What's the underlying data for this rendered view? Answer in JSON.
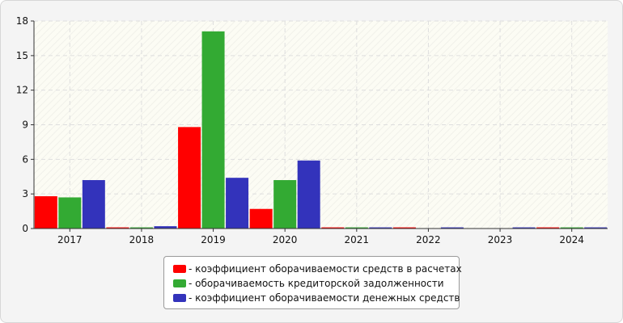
{
  "chart_data": {
    "type": "bar",
    "categories": [
      "2017",
      "2018",
      "2019",
      "2020",
      "2021",
      "2022",
      "2023",
      "2024"
    ],
    "series": [
      {
        "name": "- коэффициент оборачиваемости средств в расчетах",
        "color": "#ff0000",
        "values": [
          2.8,
          0.1,
          8.8,
          1.7,
          0.1,
          0.1,
          0.0,
          0.1
        ]
      },
      {
        "name": "- оборачиваемость кредиторской задолженности",
        "color": "#33aa33",
        "values": [
          2.7,
          0.1,
          17.1,
          4.2,
          0.1,
          0.0,
          0.0,
          0.1
        ]
      },
      {
        "name": "- коэффициент оборачиваемости денежных средств",
        "color": "#3333bb",
        "values": [
          4.2,
          0.2,
          4.4,
          5.9,
          0.1,
          0.1,
          0.1,
          0.1
        ]
      }
    ],
    "yticks": [
      0,
      3,
      6,
      9,
      12,
      15,
      18
    ],
    "ylim": [
      0,
      18
    ],
    "title": "",
    "xlabel": "",
    "ylabel": "",
    "grid": true,
    "legend_position": "bottom-center"
  }
}
